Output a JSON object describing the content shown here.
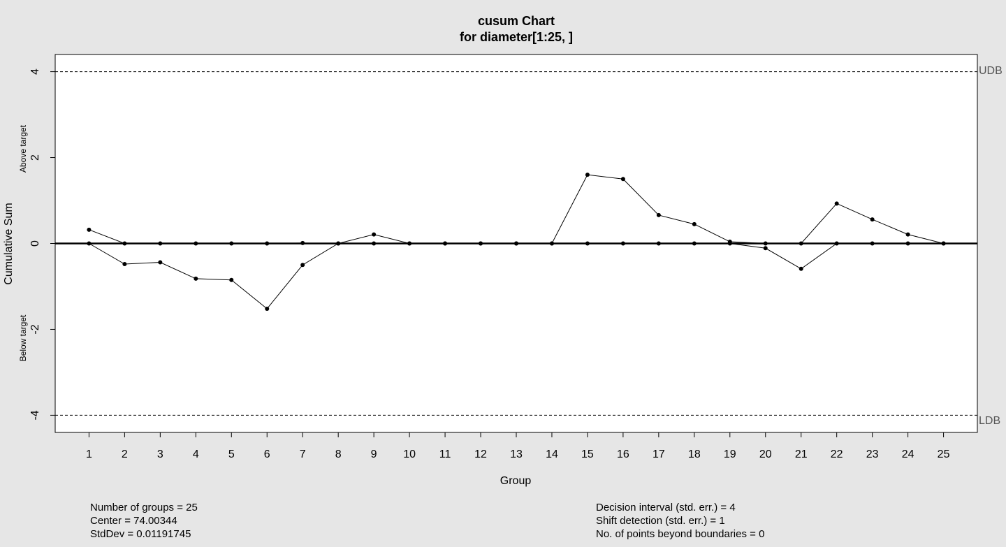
{
  "chart_data": {
    "type": "line",
    "title": "cusum Chart",
    "subtitle": "for diameter[1:25, ]",
    "xlabel": "Group",
    "ylabel": "Cumulative Sum",
    "above_label": "Above target",
    "below_label": "Below target",
    "xlim": [
      0.05,
      25.95
    ],
    "ylim": [
      -4.4,
      4.4
    ],
    "yticks": [
      -4,
      -2,
      0,
      2,
      4
    ],
    "x": [
      1,
      2,
      3,
      4,
      5,
      6,
      7,
      8,
      9,
      10,
      11,
      12,
      13,
      14,
      15,
      16,
      17,
      18,
      19,
      20,
      21,
      22,
      23,
      24,
      25
    ],
    "series": [
      {
        "values": [
          0.32,
          0,
          0,
          0,
          0,
          0,
          0.01,
          0,
          0.21,
          0,
          0,
          0,
          0,
          0,
          1.6,
          1.5,
          0.66,
          0.45,
          0.04,
          0,
          0,
          0.93,
          0.56,
          0.21,
          0
        ]
      },
      {
        "values": [
          0,
          -0.48,
          -0.44,
          -0.82,
          -0.85,
          -1.52,
          -0.5,
          0,
          0,
          0,
          0,
          0,
          0,
          0,
          0,
          0,
          0,
          0,
          0,
          -0.11,
          -0.59,
          0,
          0,
          0,
          0
        ]
      }
    ],
    "center_line": 0,
    "upper_boundary": {
      "value": 4,
      "label": "UDB"
    },
    "lower_boundary": {
      "value": -4,
      "label": "LDB"
    },
    "grid": false,
    "colors": {
      "background": "#e6e6e6",
      "plot": "#ffffff",
      "line": "#000000",
      "boundary_label": "#555555"
    }
  },
  "stats_left": [
    "Number of groups = 25",
    "Center = 74.00344",
    "StdDev = 0.01191745"
  ],
  "stats_right": [
    "Decision interval (std. err.) = 4",
    "Shift detection (std. err.) = 1",
    "No. of points beyond boundaries = 0"
  ]
}
